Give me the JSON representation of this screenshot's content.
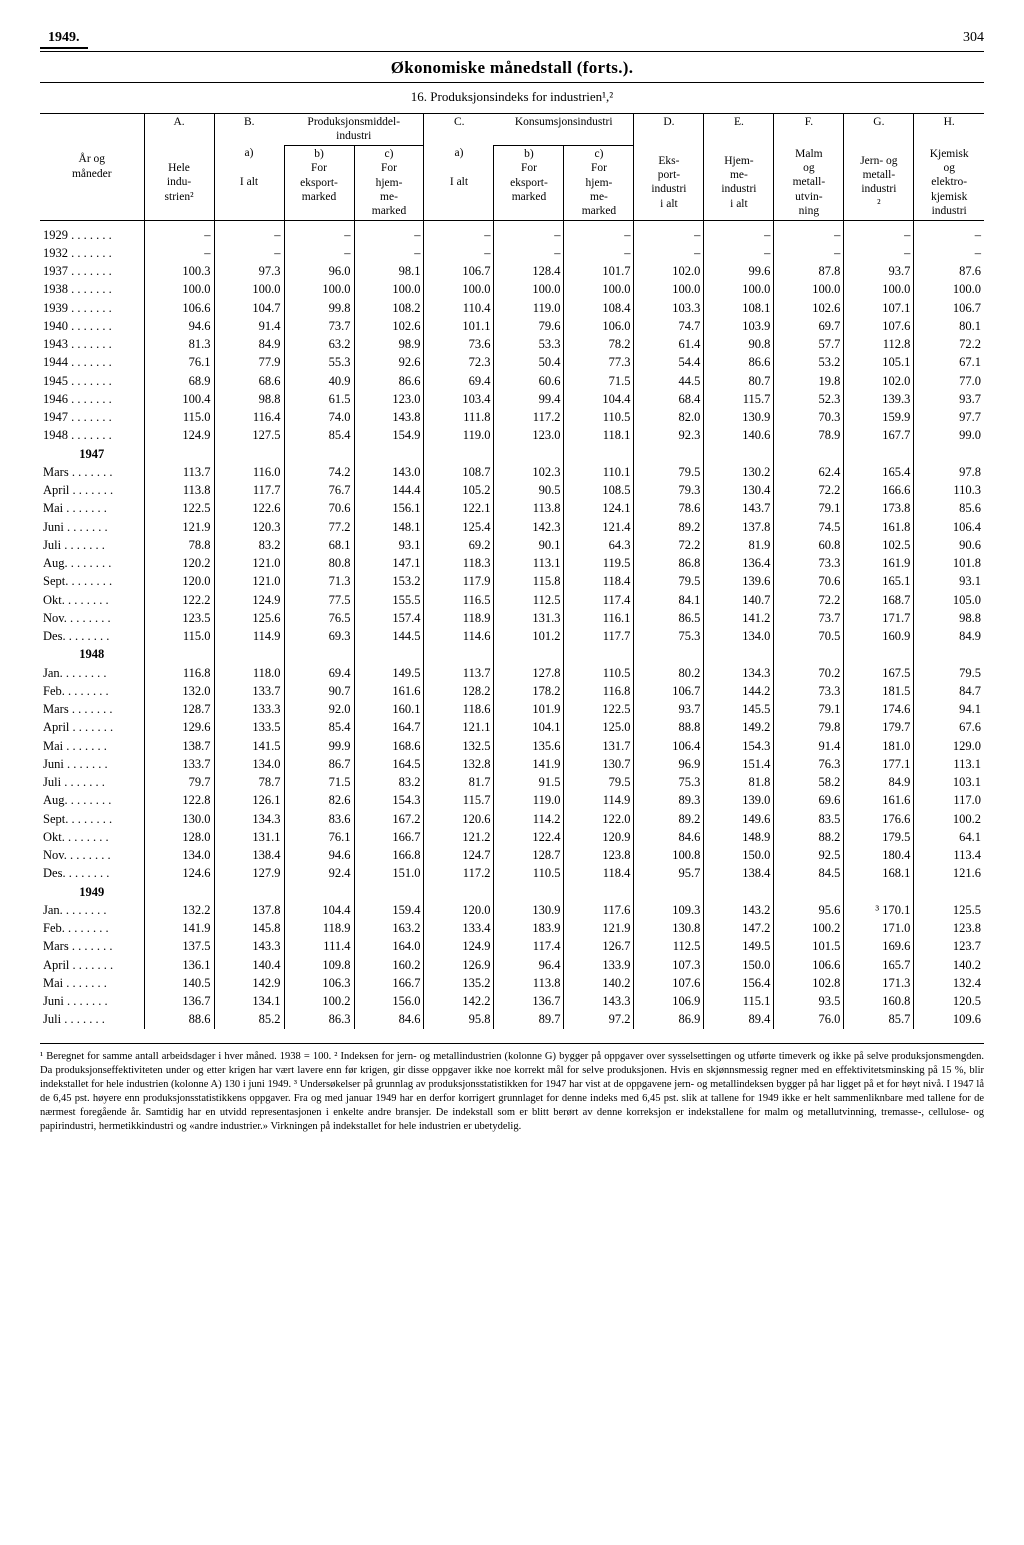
{
  "page": {
    "year": "1949.",
    "number": "304"
  },
  "title": "Økonomiske månedstall (forts.).",
  "subtitle": "16. Produksjonsindeks for industrien¹,²",
  "header": {
    "rowLabel": "År og\nmåneder",
    "A": "A.",
    "A_sub": "Hele\nindu-\nstrien²",
    "B": "B.",
    "B_group": "Produksjonsmiddel-\nindustri",
    "Ba": "a)\n\nI alt",
    "Bb": "b)\nFor\neksport-\nmarked",
    "Bc": "c)\nFor\nhjem-\nme-\nmarked",
    "C": "C.",
    "C_group": "Konsumsjonsindustri",
    "Ca": "a)\n\nI alt",
    "Cb": "b)\nFor\neksport-\nmarked",
    "Cc": "c)\nFor\nhjem-\nme-\nmarked",
    "D": "D.",
    "D_sub": "Eks-\nport-\nindustri\ni alt",
    "E": "E.",
    "E_sub": "Hjem-\nme-\nindustri\ni alt",
    "F": "F.",
    "F_sub": "Malm\nog\nmetall-\nutvin-\nning",
    "G": "G.",
    "G_sub": "Jern- og\nmetall-\nindustri\n²",
    "H": "H.",
    "H_sub": "Kjemisk\nog\nelektro-\nkjemisk\nindustri"
  },
  "rows": [
    {
      "l": "1929",
      "v": [
        "–",
        "–",
        "–",
        "–",
        "–",
        "–",
        "–",
        "–",
        "–",
        "–",
        "–",
        "–"
      ]
    },
    {
      "l": "1932",
      "v": [
        "–",
        "–",
        "–",
        "–",
        "–",
        "–",
        "–",
        "–",
        "–",
        "–",
        "–",
        "–"
      ]
    },
    {
      "l": "1937",
      "v": [
        "100.3",
        "97.3",
        "96.0",
        "98.1",
        "106.7",
        "128.4",
        "101.7",
        "102.0",
        "99.6",
        "87.8",
        "93.7",
        "87.6"
      ]
    },
    {
      "l": "1938",
      "v": [
        "100.0",
        "100.0",
        "100.0",
        "100.0",
        "100.0",
        "100.0",
        "100.0",
        "100.0",
        "100.0",
        "100.0",
        "100.0",
        "100.0"
      ]
    },
    {
      "l": "1939",
      "v": [
        "106.6",
        "104.7",
        "99.8",
        "108.2",
        "110.4",
        "119.0",
        "108.4",
        "103.3",
        "108.1",
        "102.6",
        "107.1",
        "106.7"
      ]
    },
    {
      "l": "1940",
      "v": [
        "94.6",
        "91.4",
        "73.7",
        "102.6",
        "101.1",
        "79.6",
        "106.0",
        "74.7",
        "103.9",
        "69.7",
        "107.6",
        "80.1"
      ]
    },
    {
      "l": "1943",
      "v": [
        "81.3",
        "84.9",
        "63.2",
        "98.9",
        "73.6",
        "53.3",
        "78.2",
        "61.4",
        "90.8",
        "57.7",
        "112.8",
        "72.2"
      ]
    },
    {
      "l": "1944",
      "v": [
        "76.1",
        "77.9",
        "55.3",
        "92.6",
        "72.3",
        "50.4",
        "77.3",
        "54.4",
        "86.6",
        "53.2",
        "105.1",
        "67.1"
      ]
    },
    {
      "l": "1945",
      "v": [
        "68.9",
        "68.6",
        "40.9",
        "86.6",
        "69.4",
        "60.6",
        "71.5",
        "44.5",
        "80.7",
        "19.8",
        "102.0",
        "77.0"
      ]
    },
    {
      "l": "1946",
      "v": [
        "100.4",
        "98.8",
        "61.5",
        "123.0",
        "103.4",
        "99.4",
        "104.4",
        "68.4",
        "115.7",
        "52.3",
        "139.3",
        "93.7"
      ]
    },
    {
      "l": "1947",
      "v": [
        "115.0",
        "116.4",
        "74.0",
        "143.8",
        "111.8",
        "117.2",
        "110.5",
        "82.0",
        "130.9",
        "70.3",
        "159.9",
        "97.7"
      ]
    },
    {
      "l": "1948",
      "v": [
        "124.9",
        "127.5",
        "85.4",
        "154.9",
        "119.0",
        "123.0",
        "118.1",
        "92.3",
        "140.6",
        "78.9",
        "167.7",
        "99.0"
      ]
    },
    {
      "section": "1947"
    },
    {
      "l": "Mars",
      "v": [
        "113.7",
        "116.0",
        "74.2",
        "143.0",
        "108.7",
        "102.3",
        "110.1",
        "79.5",
        "130.2",
        "62.4",
        "165.4",
        "97.8"
      ]
    },
    {
      "l": "April",
      "v": [
        "113.8",
        "117.7",
        "76.7",
        "144.4",
        "105.2",
        "90.5",
        "108.5",
        "79.3",
        "130.4",
        "72.2",
        "166.6",
        "110.3"
      ]
    },
    {
      "l": "Mai",
      "v": [
        "122.5",
        "122.6",
        "70.6",
        "156.1",
        "122.1",
        "113.8",
        "124.1",
        "78.6",
        "143.7",
        "79.1",
        "173.8",
        "85.6"
      ]
    },
    {
      "l": "Juni",
      "v": [
        "121.9",
        "120.3",
        "77.2",
        "148.1",
        "125.4",
        "142.3",
        "121.4",
        "89.2",
        "137.8",
        "74.5",
        "161.8",
        "106.4"
      ]
    },
    {
      "l": "Juli",
      "v": [
        "78.8",
        "83.2",
        "68.1",
        "93.1",
        "69.2",
        "90.1",
        "64.3",
        "72.2",
        "81.9",
        "60.8",
        "102.5",
        "90.6"
      ]
    },
    {
      "l": "Aug.",
      "v": [
        "120.2",
        "121.0",
        "80.8",
        "147.1",
        "118.3",
        "113.1",
        "119.5",
        "86.8",
        "136.4",
        "73.3",
        "161.9",
        "101.8"
      ]
    },
    {
      "l": "Sept.",
      "v": [
        "120.0",
        "121.0",
        "71.3",
        "153.2",
        "117.9",
        "115.8",
        "118.4",
        "79.5",
        "139.6",
        "70.6",
        "165.1",
        "93.1"
      ]
    },
    {
      "l": "Okt.",
      "v": [
        "122.2",
        "124.9",
        "77.5",
        "155.5",
        "116.5",
        "112.5",
        "117.4",
        "84.1",
        "140.7",
        "72.2",
        "168.7",
        "105.0"
      ]
    },
    {
      "l": "Nov.",
      "v": [
        "123.5",
        "125.6",
        "76.5",
        "157.4",
        "118.9",
        "131.3",
        "116.1",
        "86.5",
        "141.2",
        "73.7",
        "171.7",
        "98.8"
      ]
    },
    {
      "l": "Des.",
      "v": [
        "115.0",
        "114.9",
        "69.3",
        "144.5",
        "114.6",
        "101.2",
        "117.7",
        "75.3",
        "134.0",
        "70.5",
        "160.9",
        "84.9"
      ]
    },
    {
      "section": "1948"
    },
    {
      "l": "Jan.",
      "v": [
        "116.8",
        "118.0",
        "69.4",
        "149.5",
        "113.7",
        "127.8",
        "110.5",
        "80.2",
        "134.3",
        "70.2",
        "167.5",
        "79.5"
      ]
    },
    {
      "l": "Feb.",
      "v": [
        "132.0",
        "133.7",
        "90.7",
        "161.6",
        "128.2",
        "178.2",
        "116.8",
        "106.7",
        "144.2",
        "73.3",
        "181.5",
        "84.7"
      ]
    },
    {
      "l": "Mars",
      "v": [
        "128.7",
        "133.3",
        "92.0",
        "160.1",
        "118.6",
        "101.9",
        "122.5",
        "93.7",
        "145.5",
        "79.1",
        "174.6",
        "94.1"
      ]
    },
    {
      "l": "April",
      "v": [
        "129.6",
        "133.5",
        "85.4",
        "164.7",
        "121.1",
        "104.1",
        "125.0",
        "88.8",
        "149.2",
        "79.8",
        "179.7",
        "67.6"
      ]
    },
    {
      "l": "Mai",
      "v": [
        "138.7",
        "141.5",
        "99.9",
        "168.6",
        "132.5",
        "135.6",
        "131.7",
        "106.4",
        "154.3",
        "91.4",
        "181.0",
        "129.0"
      ]
    },
    {
      "l": "Juni",
      "v": [
        "133.7",
        "134.0",
        "86.7",
        "164.5",
        "132.8",
        "141.9",
        "130.7",
        "96.9",
        "151.4",
        "76.3",
        "177.1",
        "113.1"
      ]
    },
    {
      "l": "Juli",
      "v": [
        "79.7",
        "78.7",
        "71.5",
        "83.2",
        "81.7",
        "91.5",
        "79.5",
        "75.3",
        "81.8",
        "58.2",
        "84.9",
        "103.1"
      ]
    },
    {
      "l": "Aug.",
      "v": [
        "122.8",
        "126.1",
        "82.6",
        "154.3",
        "115.7",
        "119.0",
        "114.9",
        "89.3",
        "139.0",
        "69.6",
        "161.6",
        "117.0"
      ]
    },
    {
      "l": "Sept.",
      "v": [
        "130.0",
        "134.3",
        "83.6",
        "167.2",
        "120.6",
        "114.2",
        "122.0",
        "89.2",
        "149.6",
        "83.5",
        "176.6",
        "100.2"
      ]
    },
    {
      "l": "Okt.",
      "v": [
        "128.0",
        "131.1",
        "76.1",
        "166.7",
        "121.2",
        "122.4",
        "120.9",
        "84.6",
        "148.9",
        "88.2",
        "179.5",
        "64.1"
      ]
    },
    {
      "l": "Nov.",
      "v": [
        "134.0",
        "138.4",
        "94.6",
        "166.8",
        "124.7",
        "128.7",
        "123.8",
        "100.8",
        "150.0",
        "92.5",
        "180.4",
        "113.4"
      ]
    },
    {
      "l": "Des.",
      "v": [
        "124.6",
        "127.9",
        "92.4",
        "151.0",
        "117.2",
        "110.5",
        "118.4",
        "95.7",
        "138.4",
        "84.5",
        "168.1",
        "121.6"
      ]
    },
    {
      "section": "1949"
    },
    {
      "l": "Jan.",
      "v": [
        "132.2",
        "137.8",
        "104.4",
        "159.4",
        "120.0",
        "130.9",
        "117.6",
        "109.3",
        "143.2",
        "95.6",
        "³ 170.1",
        "125.5"
      ]
    },
    {
      "l": "Feb.",
      "v": [
        "141.9",
        "145.8",
        "118.9",
        "163.2",
        "133.4",
        "183.9",
        "121.9",
        "130.8",
        "147.2",
        "100.2",
        "171.0",
        "123.8"
      ]
    },
    {
      "l": "Mars",
      "v": [
        "137.5",
        "143.3",
        "111.4",
        "164.0",
        "124.9",
        "117.4",
        "126.7",
        "112.5",
        "149.5",
        "101.5",
        "169.6",
        "123.7"
      ]
    },
    {
      "l": "April",
      "v": [
        "136.1",
        "140.4",
        "109.8",
        "160.2",
        "126.9",
        "96.4",
        "133.9",
        "107.3",
        "150.0",
        "106.6",
        "165.7",
        "140.2"
      ]
    },
    {
      "l": "Mai",
      "v": [
        "140.5",
        "142.9",
        "106.3",
        "166.7",
        "135.2",
        "113.8",
        "140.2",
        "107.6",
        "156.4",
        "102.8",
        "171.3",
        "132.4"
      ]
    },
    {
      "l": "Juni",
      "v": [
        "136.7",
        "134.1",
        "100.2",
        "156.0",
        "142.2",
        "136.7",
        "143.3",
        "106.9",
        "115.1",
        "93.5",
        "160.8",
        "120.5"
      ]
    },
    {
      "l": "Juli",
      "v": [
        "88.6",
        "85.2",
        "86.3",
        "84.6",
        "95.8",
        "89.7",
        "97.2",
        "86.9",
        "89.4",
        "76.0",
        "85.7",
        "109.6"
      ]
    }
  ],
  "footnote": "¹ Beregnet for samme antall arbeidsdager i hver måned. 1938 = 100.  ² Indeksen for jern- og metallindustrien (kolonne G) bygger på oppgaver over sysselsettingen og utførte timeverk og ikke på selve produksjonsmengden. Da produksjonseffektiviteten under og etter krigen har vært lavere enn før krigen, gir disse oppgaver ikke noe korrekt mål for selve produksjonen. Hvis en skjønnsmessig regner med en effektivitetsminsking på 15 %, blir indekstallet for hele industrien (kolonne A) 130 i juni 1949.  ³ Undersøkelser på grunnlag av produksjonsstatistikken for 1947 har vist at de oppgavene jern- og metallindeksen bygger på har ligget på et for høyt nivå. I 1947 lå de 6,45 pst. høyere enn produksjonsstatistikkens oppgaver. Fra og med januar 1949 har en derfor korrigert grunnlaget for denne indeks med 6,45 pst. slik at tallene for 1949 ikke er helt sammenliknbare med tallene for de nærmest foregående år. Samtidig har en utvidd representasjonen i enkelte andre bransjer. De indekstall som er blitt berørt av denne korreksjon er indekstallene for malm og metallutvinning, tremasse-, cellulose- og papirindustri, hermetikkindustri og «andre industrier.» Virkningen på indekstallet for hele industrien er ubetydelig."
}
